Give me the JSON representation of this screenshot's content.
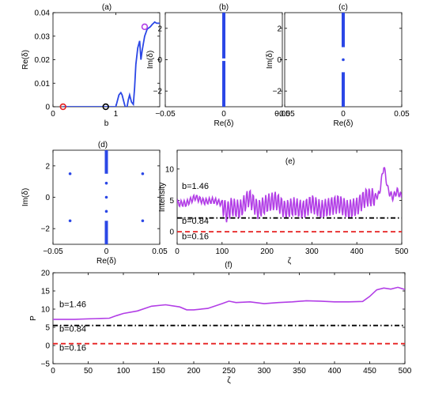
{
  "colors": {
    "blue": "#2b47e6",
    "magenta": "#b23ee6",
    "red": "#e62020",
    "black": "#000000"
  },
  "chart_data": [
    {
      "panel": "(a)",
      "type": "line",
      "xlabel": "b",
      "ylabel": "Re(δ)",
      "xlim": [
        0,
        1.7
      ],
      "ylim": [
        0,
        0.04
      ],
      "xticks": [
        "0",
        "1"
      ],
      "yticks": [
        "0",
        "0.01",
        "0.02",
        "0.03",
        "0.04"
      ],
      "series": [
        {
          "color": "#2b47e6",
          "x": [
            0.16,
            0.4,
            0.7,
            0.95,
            1.0,
            1.02,
            1.05,
            1.08,
            1.1,
            1.13,
            1.15,
            1.18,
            1.2,
            1.22,
            1.25,
            1.28,
            1.3,
            1.32,
            1.35,
            1.38,
            1.4,
            1.42,
            1.46,
            1.5,
            1.55,
            1.58,
            1.6,
            1.62,
            1.65,
            1.7
          ],
          "y": [
            0,
            0,
            0,
            0,
            0,
            0.002,
            0.005,
            0.006,
            0.005,
            0.002,
            0,
            0,
            0.003,
            0.005,
            0.002,
            0.001,
            0.008,
            0.018,
            0.025,
            0.028,
            0.02,
            0.024,
            0.03,
            0.033,
            0.034,
            0.035,
            0.0355,
            0.036,
            0.0355,
            0.0355
          ]
        }
      ],
      "markers": [
        {
          "x": 0.16,
          "y": 0,
          "color": "#e62020"
        },
        {
          "x": 0.84,
          "y": 0,
          "color": "#000000"
        },
        {
          "x": 1.46,
          "y": 0.034,
          "color": "#b23ee6"
        }
      ]
    },
    {
      "panel": "(b)",
      "type": "scatter",
      "xlabel": "Re(δ)",
      "ylabel": "Im(δ)",
      "xlim": [
        -0.05,
        0.05
      ],
      "ylim": [
        -3,
        3
      ],
      "xticks": [
        "−0.05",
        "0",
        "0.05"
      ],
      "yticks": [
        "−2",
        "0",
        "2"
      ],
      "segments": [
        {
          "x": 0,
          "y_from": -3,
          "y_to": -0.08
        },
        {
          "x": 0,
          "y_from": 0.08,
          "y_to": 3
        }
      ],
      "points": []
    },
    {
      "panel": "(c)",
      "type": "scatter",
      "xlabel": "Re(δ)",
      "ylabel": "Im(δ)",
      "xlim": [
        -0.05,
        0.05
      ],
      "ylim": [
        -3,
        3
      ],
      "xticks": [
        "−0.05",
        "0",
        "0.05"
      ],
      "yticks": [
        "−2",
        "0",
        "2"
      ],
      "segments": [
        {
          "x": 0,
          "y_from": -3,
          "y_to": -0.8
        },
        {
          "x": 0,
          "y_from": 0.8,
          "y_to": 3
        }
      ],
      "points": [
        {
          "x": 0,
          "y": 0
        }
      ]
    },
    {
      "panel": "(d)",
      "type": "scatter",
      "xlabel": "Re(δ)",
      "ylabel": "Im(δ)",
      "xlim": [
        -0.05,
        0.05
      ],
      "ylim": [
        -3,
        3
      ],
      "xticks": [
        "−0.05",
        "0",
        "0.05"
      ],
      "yticks": [
        "−2",
        "0",
        "2"
      ],
      "segments": [
        {
          "x": 0,
          "y_from": -3,
          "y_to": -1.5
        },
        {
          "x": 0,
          "y_from": 1.5,
          "y_to": 3
        }
      ],
      "points": [
        {
          "x": -0.034,
          "y": 1.5
        },
        {
          "x": 0.034,
          "y": 1.5
        },
        {
          "x": -0.034,
          "y": -1.5
        },
        {
          "x": 0.034,
          "y": -1.5
        },
        {
          "x": 0,
          "y": 0
        },
        {
          "x": 0,
          "y": 0.9
        },
        {
          "x": 0,
          "y": -0.9
        }
      ]
    },
    {
      "panel": "(e)",
      "type": "line",
      "xlabel": "ζ",
      "ylabel": "Intensity",
      "xlim": [
        0,
        500
      ],
      "ylim": [
        -2,
        13
      ],
      "xticks": [
        "0",
        "100",
        "200",
        "300",
        "400",
        "500"
      ],
      "yticks": [
        "0",
        "5",
        "10"
      ],
      "series": [
        {
          "name": "b=1.46",
          "color": "#b23ee6",
          "style": "solid",
          "oscillating": true,
          "x": [
            0,
            20,
            40,
            60,
            80,
            100,
            110,
            120,
            140,
            160,
            180,
            200,
            220,
            240,
            260,
            280,
            300,
            320,
            340,
            360,
            380,
            400,
            420,
            440,
            450,
            460,
            470,
            480,
            490,
            500
          ],
          "y": [
            4.5,
            4.5,
            5.5,
            4.8,
            5.0,
            4.5,
            3.0,
            4.0,
            3.5,
            5.5,
            3.5,
            4.5,
            5.0,
            3.5,
            4.0,
            3.5,
            4.5,
            3.5,
            4.0,
            4.5,
            3.5,
            4.0,
            5.5,
            5.5,
            6.0,
            10.5,
            6.5,
            5.5,
            6.5,
            5.5
          ]
        },
        {
          "name": "b=0.84",
          "color": "#000000",
          "style": "dashdot",
          "x": [
            0,
            500
          ],
          "y": [
            2.2,
            2.2
          ]
        },
        {
          "name": "b=0.16",
          "color": "#e62020",
          "style": "dashed",
          "x": [
            0,
            500
          ],
          "y": [
            0,
            0
          ]
        }
      ],
      "annotations": [
        "b=1.46",
        "b=0.84",
        "b=0.16"
      ]
    },
    {
      "panel": "(f)",
      "type": "line",
      "xlabel": "ζ",
      "ylabel": "P",
      "xlim": [
        0,
        500
      ],
      "ylim": [
        -5,
        20
      ],
      "xticks": [
        "0",
        "50",
        "100",
        "150",
        "200",
        "250",
        "300",
        "350",
        "400",
        "450",
        "500"
      ],
      "yticks": [
        "−5",
        "0",
        "5",
        "10",
        "15",
        "20"
      ],
      "series": [
        {
          "name": "b=1.46",
          "color": "#b23ee6",
          "style": "solid",
          "x": [
            0,
            30,
            60,
            80,
            90,
            100,
            120,
            140,
            160,
            180,
            190,
            200,
            220,
            240,
            250,
            260,
            280,
            300,
            320,
            340,
            360,
            380,
            400,
            420,
            440,
            450,
            460,
            470,
            480,
            490,
            500
          ],
          "y": [
            7.2,
            7.2,
            7.4,
            7.5,
            8.2,
            8.8,
            9.5,
            10.8,
            11.2,
            10.6,
            9.8,
            9.8,
            10.2,
            11.5,
            12.2,
            11.8,
            12.0,
            11.5,
            11.8,
            12.0,
            12.3,
            12.2,
            12.0,
            12.0,
            12.1,
            13.5,
            15.3,
            15.8,
            15.5,
            16.0,
            15.4
          ]
        },
        {
          "name": "b=0.84",
          "color": "#000000",
          "style": "dashdot",
          "x": [
            0,
            500
          ],
          "y": [
            5.5,
            5.5
          ]
        },
        {
          "name": "b=0.16",
          "color": "#e62020",
          "style": "dashed",
          "x": [
            0,
            500
          ],
          "y": [
            0.5,
            0.5
          ]
        }
      ],
      "annotations": [
        "b=1.46",
        "b=0.84",
        "b=0.16"
      ]
    }
  ]
}
